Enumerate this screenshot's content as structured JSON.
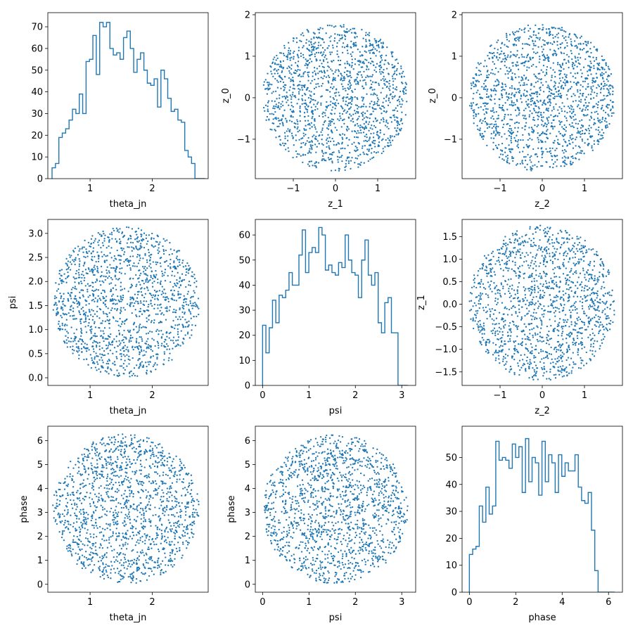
{
  "chart_data": [
    {
      "type": "histogram",
      "panel": [
        0,
        0
      ],
      "xlabel": "theta_jn",
      "ylabel": "",
      "xlim": [
        0.32,
        2.9
      ],
      "ylim": [
        0,
        76.5
      ],
      "xticks": [
        1,
        2
      ],
      "xtick_labels": [
        "1",
        "2"
      ],
      "yticks": [
        0,
        10,
        20,
        30,
        40,
        50,
        60,
        70
      ],
      "ytick_labels": [
        "0",
        "10",
        "20",
        "30",
        "40",
        "50",
        "60",
        "70"
      ],
      "bin_edges": [
        0.388,
        0.4427,
        0.4975,
        0.5522,
        0.607,
        0.6617,
        0.7164,
        0.7712,
        0.8259,
        0.8806,
        0.9354,
        0.9901,
        1.0449,
        1.0996,
        1.1543,
        1.2091,
        1.2638,
        1.3185,
        1.3733,
        1.428,
        1.4828,
        1.5375,
        1.5922,
        1.647,
        1.7017,
        1.7564,
        1.8112,
        1.8659,
        1.9207,
        1.9754,
        2.0301,
        2.0849,
        2.1396,
        2.1943,
        2.2491,
        2.3038,
        2.3586,
        2.4133,
        2.468,
        2.5228,
        2.5775,
        2.6322,
        2.687,
        2.7417,
        2.7965,
        2.8512
      ],
      "counts": [
        5,
        7,
        19,
        21,
        23,
        27,
        32,
        30,
        39,
        30,
        54,
        55,
        66,
        48,
        72,
        70,
        72,
        60,
        57,
        58,
        55,
        65,
        68,
        60,
        49,
        55,
        58,
        50,
        44,
        43,
        46,
        33,
        50,
        46,
        37,
        31,
        32,
        27,
        26,
        13,
        10,
        7,
        0,
        0,
        0
      ]
    },
    {
      "type": "scatter",
      "panel": [
        0,
        1
      ],
      "xlabel": "z_1",
      "ylabel": "z_0",
      "gen": "disk",
      "n": 1500,
      "seed": 11,
      "center": [
        0,
        0
      ],
      "radius": [
        1.73,
        1.78
      ],
      "xlim": [
        -1.9,
        1.9
      ],
      "ylim": [
        -1.95,
        2.05
      ],
      "xticks": [
        -1,
        0,
        1
      ],
      "xtick_labels": [
        "−1",
        "0",
        "1"
      ],
      "yticks": [
        -1,
        0,
        1,
        2
      ],
      "ytick_labels": [
        "−1",
        "0",
        "1",
        "2"
      ]
    },
    {
      "type": "scatter",
      "panel": [
        0,
        2
      ],
      "xlabel": "z_2",
      "ylabel": "z_0",
      "gen": "disk",
      "n": 1500,
      "seed": 23,
      "center": [
        0,
        0
      ],
      "radius": [
        1.73,
        1.78
      ],
      "xlim": [
        -1.9,
        1.9
      ],
      "ylim": [
        -1.95,
        2.05
      ],
      "xticks": [
        -1,
        0,
        1
      ],
      "xtick_labels": [
        "−1",
        "0",
        "1"
      ],
      "yticks": [
        -1,
        0,
        1,
        2
      ],
      "ytick_labels": [
        "−1",
        "0",
        "1",
        "2"
      ]
    },
    {
      "type": "scatter",
      "panel": [
        1,
        0
      ],
      "xlabel": "theta_jn",
      "ylabel": "psi",
      "gen": "disk",
      "n": 1500,
      "seed": 37,
      "center": [
        1.58,
        1.57
      ],
      "radius": [
        1.18,
        1.56
      ],
      "xlim": [
        0.32,
        2.9
      ],
      "ylim": [
        -0.16,
        3.29
      ],
      "xticks": [
        1,
        2
      ],
      "xtick_labels": [
        "1",
        "2"
      ],
      "yticks": [
        0,
        0.5,
        1,
        1.5,
        2,
        2.5,
        3
      ],
      "ytick_labels": [
        "0.0",
        "0.5",
        "1.0",
        "1.5",
        "2.0",
        "2.5",
        "3.0"
      ]
    },
    {
      "type": "histogram",
      "panel": [
        1,
        1
      ],
      "xlabel": "psi",
      "ylabel": "",
      "xlim": [
        -0.157,
        3.3
      ],
      "ylim": [
        0,
        66.2
      ],
      "xticks": [
        0,
        1,
        2,
        3
      ],
      "xtick_labels": [
        "0",
        "1",
        "2",
        "3"
      ],
      "yticks": [
        0,
        10,
        20,
        30,
        40,
        50,
        60
      ],
      "ytick_labels": [
        "0",
        "10",
        "20",
        "30",
        "40",
        "50",
        "60"
      ],
      "bin_edges": [
        0.0,
        0.0712,
        0.1424,
        0.2136,
        0.2848,
        0.356,
        0.4272,
        0.4984,
        0.5696,
        0.6408,
        0.712,
        0.7832,
        0.8544,
        0.9256,
        0.9968,
        1.068,
        1.1392,
        1.2104,
        1.2816,
        1.3528,
        1.424,
        1.4952,
        1.5664,
        1.6376,
        1.7088,
        1.78,
        1.8512,
        1.9224,
        1.9936,
        2.0648,
        2.136,
        2.2072,
        2.2784,
        2.3496,
        2.4208,
        2.492,
        2.5632,
        2.6344,
        2.7056,
        2.7768,
        2.848,
        2.9192,
        2.9904,
        3.0616,
        3.1328
      ],
      "counts": [
        24,
        13,
        23,
        34,
        25,
        36,
        35,
        38,
        45,
        40,
        40,
        52,
        62,
        45,
        53,
        55,
        53,
        63,
        60,
        46,
        48,
        45,
        44,
        49,
        47,
        60,
        50,
        45,
        44,
        35,
        50,
        58,
        44,
        40,
        45,
        25,
        21,
        33,
        35,
        21,
        21,
        0,
        0,
        0
      ]
    },
    {
      "type": "scatter",
      "panel": [
        1,
        2
      ],
      "xlabel": "z_2",
      "ylabel": "z_1",
      "gen": "disk",
      "n": 1500,
      "seed": 53,
      "center": [
        0,
        0.03
      ],
      "radius": [
        1.73,
        1.72
      ],
      "xlim": [
        -1.9,
        1.9
      ],
      "ylim": [
        -1.8,
        1.88
      ],
      "xticks": [
        -1,
        0,
        1
      ],
      "xtick_labels": [
        "−1",
        "0",
        "1"
      ],
      "yticks": [
        -1.5,
        -1,
        -0.5,
        0,
        0.5,
        1,
        1.5
      ],
      "ytick_labels": [
        "−1.5",
        "−1.0",
        "−0.5",
        "0.0",
        "0.5",
        "1.0",
        "1.5"
      ]
    },
    {
      "type": "scatter",
      "panel": [
        2,
        0
      ],
      "xlabel": "theta_jn",
      "ylabel": "phase",
      "gen": "disk",
      "n": 1500,
      "seed": 71,
      "center": [
        1.58,
        3.14
      ],
      "radius": [
        1.18,
        3.13
      ],
      "xlim": [
        0.32,
        2.9
      ],
      "ylim": [
        -0.33,
        6.6
      ],
      "xticks": [
        1,
        2
      ],
      "xtick_labels": [
        "1",
        "2"
      ],
      "yticks": [
        0,
        1,
        2,
        3,
        4,
        5,
        6
      ],
      "ytick_labels": [
        "0",
        "1",
        "2",
        "3",
        "4",
        "5",
        "6"
      ]
    },
    {
      "type": "scatter",
      "panel": [
        2,
        1
      ],
      "xlabel": "psi",
      "ylabel": "phase",
      "gen": "disk",
      "n": 1500,
      "seed": 89,
      "center": [
        1.57,
        3.14
      ],
      "radius": [
        1.56,
        3.13
      ],
      "xlim": [
        -0.157,
        3.3
      ],
      "ylim": [
        -0.33,
        6.6
      ],
      "xticks": [
        0,
        1,
        2,
        3
      ],
      "xtick_labels": [
        "0",
        "1",
        "2",
        "3"
      ],
      "yticks": [
        0,
        1,
        2,
        3,
        4,
        5,
        6
      ],
      "ytick_labels": [
        "0",
        "1",
        "2",
        "3",
        "4",
        "5",
        "6"
      ]
    },
    {
      "type": "histogram",
      "panel": [
        2,
        2
      ],
      "xlabel": "phase",
      "ylabel": "",
      "xlim": [
        -0.314,
        6.6
      ],
      "ylim": [
        0,
        61.6
      ],
      "xticks": [
        0,
        2,
        4,
        6
      ],
      "xtick_labels": [
        "0",
        "2",
        "4",
        "6"
      ],
      "yticks": [
        0,
        10,
        20,
        30,
        40,
        50
      ],
      "ytick_labels": [
        "0",
        "10",
        "20",
        "30",
        "40",
        "50"
      ],
      "bin_edges": [
        0.0,
        0.1423,
        0.2846,
        0.4269,
        0.5692,
        0.7115,
        0.8538,
        0.9961,
        1.1384,
        1.2807,
        1.423,
        1.5653,
        1.7076,
        1.8499,
        1.9922,
        2.1345,
        2.2768,
        2.4191,
        2.5614,
        2.7037,
        2.846,
        2.9883,
        3.1306,
        3.2729,
        3.4152,
        3.5575,
        3.6998,
        3.8421,
        3.9844,
        4.1267,
        4.269,
        4.4113,
        4.5536,
        4.6959,
        4.8382,
        4.9805,
        5.1228,
        5.2651,
        5.4074,
        5.5497,
        5.692,
        5.8343,
        5.9766,
        6.1189,
        6.2612
      ],
      "counts": [
        14,
        16,
        17,
        32,
        26,
        39,
        29,
        32,
        56,
        49,
        50,
        49,
        46,
        55,
        50,
        54,
        37,
        57,
        41,
        50,
        48,
        36,
        56,
        41,
        51,
        48,
        37,
        51,
        43,
        48,
        45,
        45,
        51,
        39,
        34,
        33,
        37,
        23,
        8,
        0,
        0,
        0,
        0,
        0
      ]
    }
  ],
  "style": {
    "color": "#1f77b4"
  }
}
